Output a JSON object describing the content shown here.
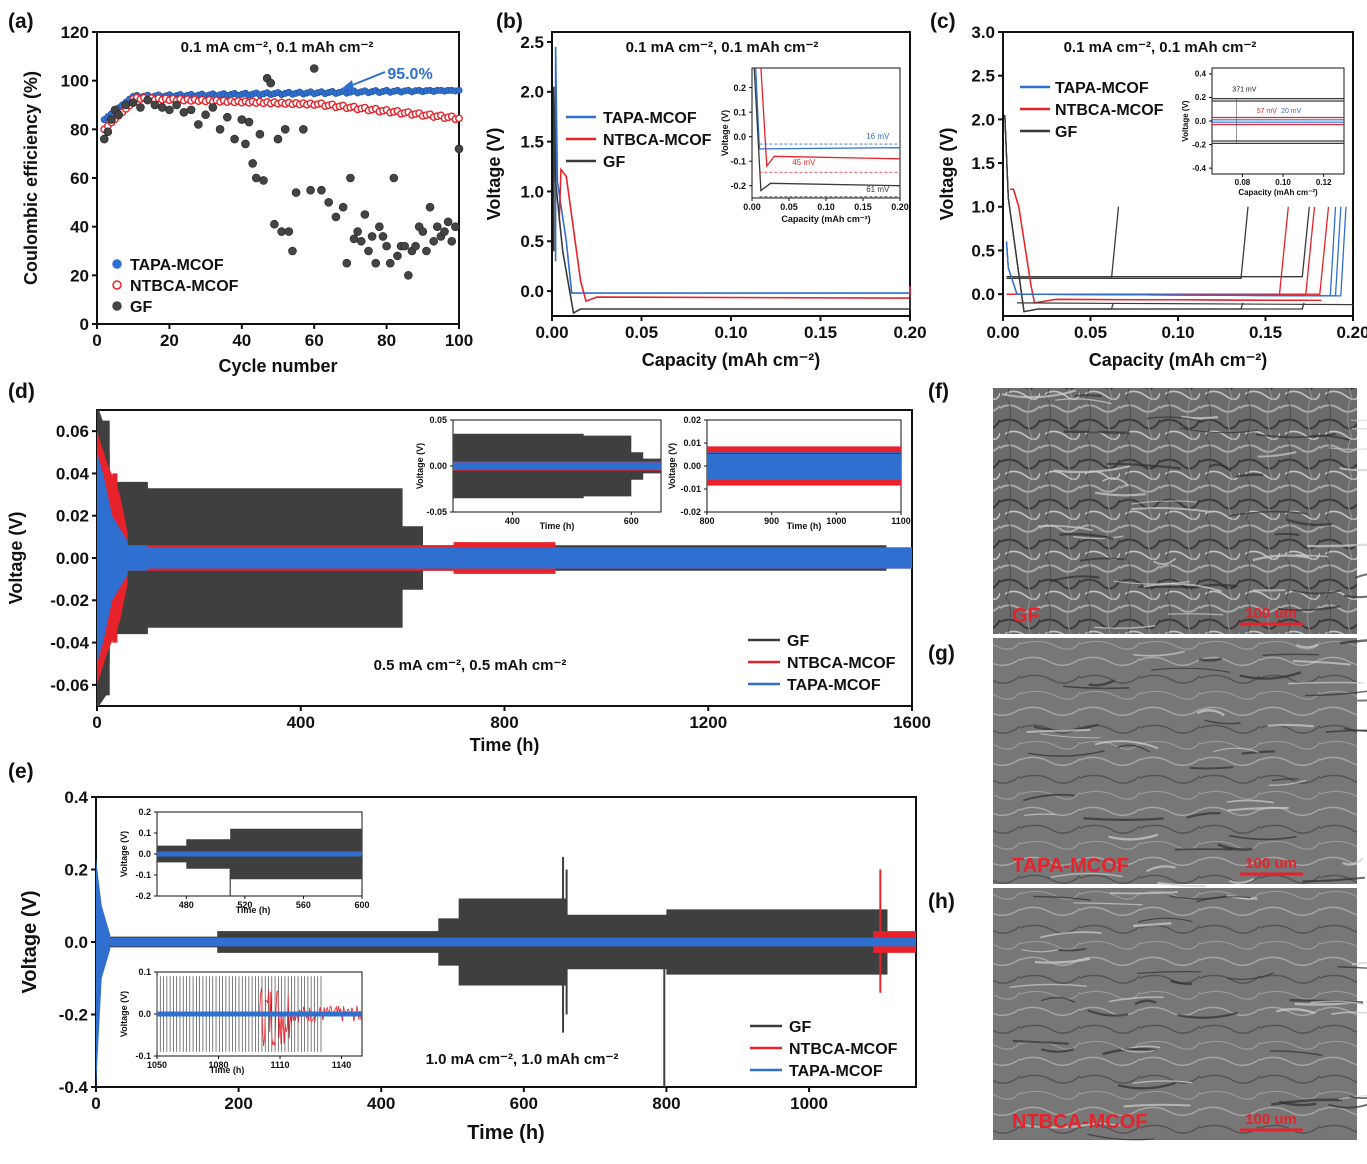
{
  "panel_labels": {
    "a": "(a)",
    "b": "(b)",
    "c": "(c)",
    "d": "(d)",
    "e": "(e)",
    "f": "(f)",
    "g": "(g)",
    "h": "(h)"
  },
  "colors": {
    "tapa": "#2f6fcf",
    "ntbca": "#e8222a",
    "gf": "#3a3a3a"
  },
  "sem": {
    "f": {
      "label": "GF",
      "scalebar": "100 um"
    },
    "g": {
      "label": "TAPA-MCOF",
      "scalebar": "100 um"
    },
    "h": {
      "label": "NTBCA-MCOF",
      "scalebar": "100 um"
    }
  },
  "chart_data": [
    {
      "id": "a",
      "type": "scatter",
      "title": "0.1 mA cm⁻², 0.1 mAh cm⁻²",
      "xlabel": "Cycle number",
      "ylabel": "Coulombic efficiency (%)",
      "xlim": [
        0,
        100
      ],
      "ylim": [
        0,
        120
      ],
      "xticks": [
        "0",
        "20",
        "40",
        "60",
        "80",
        "100"
      ],
      "yticks": [
        "0",
        "20",
        "40",
        "60",
        "80",
        "100",
        "120"
      ],
      "annotation": "95.0%",
      "legend_position": "bottom-left",
      "series": [
        {
          "name": "TAPA-MCOF",
          "color": "#2f6fcf"
        },
        {
          "name": "NTBCA-MCOF",
          "color": "#e8222a"
        },
        {
          "name": "GF",
          "color": "#3a3a3a",
          "x": [
            2,
            3,
            4,
            5,
            6,
            8,
            10,
            12,
            14,
            16,
            18,
            20,
            22,
            24,
            26,
            28,
            30,
            32,
            34,
            36,
            38,
            40,
            41,
            42,
            43,
            44,
            45,
            46,
            47,
            48,
            49,
            50,
            51,
            52,
            53,
            54,
            55,
            57,
            59,
            60,
            62,
            64,
            66,
            68,
            69,
            70,
            71,
            72,
            73,
            74,
            75,
            76,
            77,
            78,
            79,
            80,
            81,
            82,
            83,
            84,
            85,
            86,
            87,
            88,
            89,
            90,
            91,
            92,
            93,
            94,
            95,
            96,
            97,
            98,
            99,
            100
          ],
          "y": [
            76,
            79,
            84,
            88,
            86,
            90,
            91,
            89,
            92,
            90,
            89,
            88,
            90,
            87,
            88,
            82,
            86,
            89,
            80,
            85,
            76,
            84,
            74,
            83,
            66,
            60,
            78,
            59,
            101,
            99,
            41,
            76,
            38,
            80,
            38,
            30,
            54,
            80,
            55,
            105,
            55,
            50,
            44,
            48,
            25,
            60,
            35,
            38,
            34,
            45,
            30,
            36,
            25,
            40,
            36,
            32,
            25,
            60,
            28,
            32,
            32,
            20,
            30,
            32,
            40,
            38,
            30,
            48,
            34,
            40,
            36,
            38,
            42,
            34,
            40,
            72
          ]
        }
      ]
    },
    {
      "id": "b",
      "type": "line",
      "title": "0.1 mA cm⁻², 0.1 mAh cm⁻²",
      "xlabel": "Capacity (mAh cm⁻²)",
      "ylabel": "Voltage (V)",
      "xlim": [
        0,
        0.2
      ],
      "ylim": [
        -0.25,
        2.6
      ],
      "xticks": [
        "0.00",
        "0.05",
        "0.10",
        "0.15",
        "0.20"
      ],
      "yticks": [
        "0.0",
        "0.5",
        "1.0",
        "1.5",
        "2.0",
        "2.5"
      ],
      "series": [
        {
          "name": "TAPA-MCOF",
          "color": "#2f6fcf"
        },
        {
          "name": "NTBCA-MCOF",
          "color": "#e8222a"
        },
        {
          "name": "GF",
          "color": "#3a3a3a"
        }
      ],
      "inset": {
        "xlabel": "Capacity (mAh cm⁻²)",
        "ylabel": "Voltage (V)",
        "xticks": [
          "0.00",
          "0.05",
          "0.10",
          "0.15",
          "0.20"
        ],
        "yticks": [
          "-0.2",
          "-0.1",
          "0.0",
          "0.1",
          "0.2"
        ],
        "annotations": [
          "16 mV",
          "45 mV",
          "61 mV"
        ]
      }
    },
    {
      "id": "c",
      "type": "line",
      "title": "0.1 mA cm⁻², 0.1 mAh cm⁻²",
      "xlabel": "Capacity (mAh cm⁻²)",
      "ylabel": "Voltage (V)",
      "xlim": [
        0,
        0.2
      ],
      "ylim": [
        -0.25,
        3.0
      ],
      "xticks": [
        "0.00",
        "0.05",
        "0.10",
        "0.15",
        "0.20"
      ],
      "yticks": [
        "0.0",
        "0.5",
        "1.0",
        "1.5",
        "2.0",
        "2.5",
        "3.0"
      ],
      "series": [
        {
          "name": "TAPA-MCOF",
          "color": "#2f6fcf"
        },
        {
          "name": "NTBCA-MCOF",
          "color": "#e8222a"
        },
        {
          "name": "GF",
          "color": "#3a3a3a"
        }
      ],
      "inset": {
        "xlabel": "Capacity (mAh cm⁻²)",
        "ylabel": "Voltage (V)",
        "xticks": [
          "0.08",
          "0.10",
          "0.12"
        ],
        "yticks": [
          "-0.4",
          "-0.3",
          "-0.2",
          "-0.1",
          "0.0",
          "0.1",
          "0.2",
          "0.3",
          "0.4"
        ],
        "annotations": [
          "371 mV",
          "57 mV",
          "20 mV"
        ]
      }
    },
    {
      "id": "d",
      "type": "line",
      "title": "0.5 mA cm⁻², 0.5 mAh cm⁻²",
      "xlabel": "Time (h)",
      "ylabel": "Voltage (V)",
      "xlim": [
        0,
        1600
      ],
      "ylim": [
        -0.07,
        0.07
      ],
      "xticks": [
        "0",
        "400",
        "800",
        "1200",
        "1600"
      ],
      "yticks": [
        "-0.06",
        "-0.04",
        "-0.02",
        "0.00",
        "0.02",
        "0.04",
        "0.06"
      ],
      "legend_position": "bottom-right",
      "series": [
        {
          "name": "GF",
          "color": "#3a3a3a",
          "segments": [
            [
              25,
              0.065
            ],
            [
              100,
              0.036
            ],
            [
              600,
              0.033
            ],
            [
              640,
              0.015
            ],
            [
              700,
              0.006
            ],
            [
              1550,
              0.006
            ]
          ]
        },
        {
          "name": "NTBCA-MCOF",
          "color": "#e8222a",
          "segments": [
            [
              30,
              0.04
            ],
            [
              60,
              0.009
            ],
            [
              700,
              0.006
            ],
            [
              900,
              0.0075
            ],
            [
              1200,
              0.005
            ],
            [
              1600,
              0.005
            ]
          ]
        },
        {
          "name": "TAPA-MCOF",
          "color": "#2f6fcf",
          "segments": [
            [
              20,
              0.045
            ],
            [
              100,
              0.006
            ],
            [
              1600,
              0.005
            ]
          ]
        }
      ],
      "insets": [
        {
          "xlabel": "Time (h)",
          "ylabel": "Voltage (V)",
          "xticks": [
            "400",
            "600"
          ],
          "yticks": [
            "-0.05",
            "0.00",
            "0.05"
          ]
        },
        {
          "xlabel": "Time (h)",
          "ylabel": "Voltage (V)",
          "xticks": [
            "800",
            "900",
            "1000",
            "1100"
          ],
          "yticks": [
            "-0.02",
            "-0.01",
            "0.00",
            "0.01",
            "0.02"
          ]
        }
      ]
    },
    {
      "id": "e",
      "type": "line",
      "title": "1.0 mA cm⁻², 1.0 mAh cm⁻²",
      "xlabel": "Time (h)",
      "ylabel": "Voltage (V)",
      "xlim": [
        0,
        1150
      ],
      "ylim": [
        -0.4,
        0.4
      ],
      "xticks": [
        "0",
        "200",
        "400",
        "600",
        "800",
        "1000"
      ],
      "yticks": [
        "-0.4",
        "-0.2",
        "0.0",
        "0.2",
        "0.4"
      ],
      "legend_position": "bottom-right",
      "series": [
        {
          "name": "GF",
          "color": "#3a3a3a",
          "segments": [
            [
              170,
              0.015
            ],
            [
              480,
              0.03
            ],
            [
              510,
              0.065
            ],
            [
              660,
              0.12
            ],
            [
              800,
              0.075
            ],
            [
              1110,
              0.09
            ]
          ]
        },
        {
          "name": "NTBCA-MCOF",
          "color": "#e8222a",
          "segments": [
            [
              1090,
              0.01
            ],
            [
              1150,
              0.03
            ]
          ]
        },
        {
          "name": "TAPA-MCOF",
          "color": "#2f6fcf",
          "segments": [
            [
              20,
              0.1
            ],
            [
              1150,
              0.012
            ]
          ]
        }
      ],
      "insets": [
        {
          "xlabel": "Time (h)",
          "ylabel": "Voltage (V)",
          "xticks": [
            "480",
            "520",
            "560",
            "600"
          ],
          "yticks": [
            "-0.2",
            "-0.1",
            "0.0",
            "0.1",
            "0.2"
          ]
        },
        {
          "xlabel": "Time (h)",
          "ylabel": "Voltage (V)",
          "xticks": [
            "1050",
            "1080",
            "1110",
            "1140"
          ],
          "yticks": [
            "-0.1",
            "0.0",
            "0.1"
          ]
        }
      ]
    }
  ]
}
